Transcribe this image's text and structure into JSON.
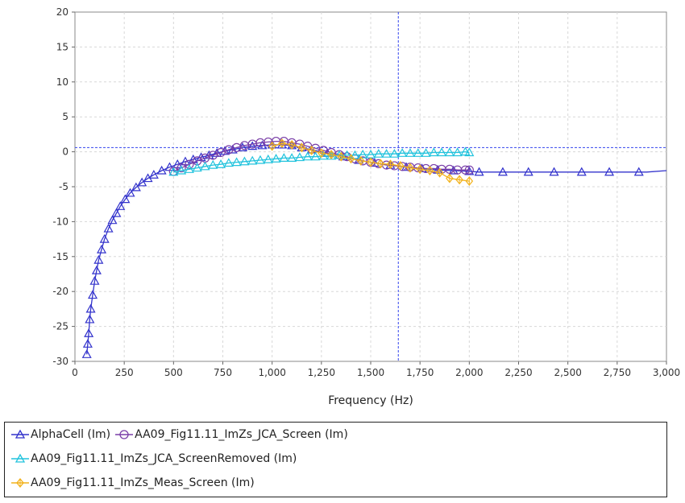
{
  "chart_data": {
    "type": "line",
    "title": "",
    "xlabel": "Frequency (Hz)",
    "ylabel": "",
    "xlim": [
      0,
      3000
    ],
    "ylim": [
      -30,
      20
    ],
    "grid": true,
    "legend_position": "bottom",
    "x_ticks": [
      0,
      250,
      500,
      750,
      1000,
      1250,
      1500,
      1750,
      2000,
      2250,
      2500,
      2750,
      3000
    ],
    "x_tick_labels": [
      "0",
      "250",
      "500",
      "750",
      "1,000",
      "1,250",
      "1,500",
      "1,750",
      "2,000",
      "2,250",
      "2,500",
      "2,750",
      "3,000"
    ],
    "y_ticks": [
      20,
      15,
      10,
      5,
      0,
      -5,
      -10,
      -15,
      -20,
      -25,
      -30
    ],
    "y_tick_labels": [
      "20",
      "15",
      "10",
      "5",
      "0",
      "-5",
      "-10",
      "-15",
      "-20",
      "-25",
      "-30"
    ],
    "crosshair": {
      "x": 1640,
      "y": 0.6
    },
    "series": [
      {
        "name": "AlphaCell (Im)",
        "color": "#3333cc",
        "marker": "triangle",
        "x": [
          60,
          65,
          70,
          75,
          80,
          90,
          100,
          110,
          120,
          135,
          150,
          170,
          190,
          210,
          230,
          255,
          280,
          310,
          340,
          370,
          400,
          440,
          480,
          520,
          560,
          600,
          640,
          680,
          720,
          760,
          800,
          850,
          900,
          950,
          1000,
          1050,
          1100,
          1150,
          1200,
          1280,
          1360,
          1440,
          1520,
          1600,
          1680,
          1760,
          1840,
          1920,
          2000,
          2050,
          2100,
          2200,
          2300,
          2400,
          2500,
          2600,
          2700,
          2800,
          2900,
          3000
        ],
        "y": [
          -29,
          -27.5,
          -26,
          -24,
          -22.5,
          -20.5,
          -18.5,
          -17,
          -15.5,
          -14,
          -12.5,
          -11,
          -9.8,
          -8.8,
          -7.8,
          -6.8,
          -5.9,
          -5.1,
          -4.4,
          -3.8,
          -3.3,
          -2.7,
          -2.2,
          -1.8,
          -1.4,
          -1.1,
          -0.8,
          -0.5,
          -0.2,
          0.1,
          0.3,
          0.6,
          0.8,
          0.9,
          1.0,
          1.0,
          0.9,
          0.6,
          0.3,
          -0.2,
          -0.7,
          -1.2,
          -1.6,
          -1.9,
          -2.2,
          -2.4,
          -2.6,
          -2.7,
          -2.8,
          -2.9,
          -2.9,
          -2.9,
          -2.9,
          -2.9,
          -2.9,
          -2.9,
          -2.9,
          -2.9,
          -2.9,
          -2.7
        ],
        "marker_x": [
          60,
          65,
          70,
          75,
          80,
          90,
          100,
          110,
          120,
          135,
          150,
          170,
          190,
          210,
          230,
          255,
          280,
          310,
          340,
          370,
          400,
          440,
          480,
          520,
          560,
          600,
          640,
          680,
          720,
          760,
          800,
          850,
          900,
          950,
          1000,
          1050,
          1100,
          1150,
          1200,
          1280,
          1360,
          1440,
          1520,
          1600,
          1680,
          1760,
          1840,
          1920,
          2000,
          2050,
          2170,
          2300,
          2430,
          2570,
          2710,
          2860
        ]
      },
      {
        "name": "AA09_Fig11.11_ImZs_JCA_Screen (Im)",
        "color": "#7a3fa8",
        "marker": "circle",
        "x": [
          500,
          540,
          580,
          620,
          660,
          700,
          740,
          780,
          820,
          860,
          900,
          940,
          980,
          1020,
          1060,
          1100,
          1140,
          1180,
          1220,
          1260,
          1300,
          1340,
          1380,
          1420,
          1460,
          1500,
          1540,
          1580,
          1620,
          1660,
          1700,
          1740,
          1780,
          1820,
          1860,
          1900,
          1940,
          1980,
          2000
        ],
        "y": [
          -2.8,
          -2.3,
          -1.8,
          -1.3,
          -0.9,
          -0.5,
          -0.1,
          0.3,
          0.6,
          0.9,
          1.1,
          1.3,
          1.4,
          1.5,
          1.5,
          1.3,
          1.1,
          0.8,
          0.5,
          0.2,
          -0.1,
          -0.4,
          -0.7,
          -1.0,
          -1.3,
          -1.5,
          -1.7,
          -1.9,
          -2.0,
          -2.1,
          -2.2,
          -2.3,
          -2.4,
          -2.4,
          -2.5,
          -2.5,
          -2.6,
          -2.6,
          -2.6
        ]
      },
      {
        "name": "AA09_Fig11.11_ImZs_JCA_ScreenRemoved (Im)",
        "color": "#22c3dd",
        "marker": "triangle",
        "x": [
          500,
          540,
          580,
          620,
          660,
          700,
          740,
          780,
          820,
          860,
          900,
          940,
          980,
          1020,
          1060,
          1100,
          1140,
          1180,
          1220,
          1260,
          1300,
          1340,
          1380,
          1420,
          1460,
          1500,
          1540,
          1580,
          1620,
          1660,
          1700,
          1740,
          1780,
          1820,
          1860,
          1900,
          1940,
          1980,
          2000
        ],
        "y": [
          -2.9,
          -2.7,
          -2.5,
          -2.3,
          -2.1,
          -1.9,
          -1.8,
          -1.6,
          -1.5,
          -1.4,
          -1.3,
          -1.2,
          -1.1,
          -1.0,
          -0.9,
          -0.9,
          -0.8,
          -0.7,
          -0.7,
          -0.6,
          -0.6,
          -0.5,
          -0.5,
          -0.5,
          -0.4,
          -0.4,
          -0.3,
          -0.3,
          -0.3,
          -0.2,
          -0.2,
          -0.2,
          -0.2,
          -0.1,
          -0.1,
          -0.1,
          -0.1,
          0.0,
          -0.1
        ]
      },
      {
        "name": "AA09_Fig11.11_ImZs_Meas_Screen (Im)",
        "color": "#f2b21c",
        "marker": "diamond-cross",
        "x": [
          1000,
          1050,
          1100,
          1150,
          1200,
          1250,
          1300,
          1350,
          1400,
          1450,
          1500,
          1550,
          1600,
          1650,
          1700,
          1750,
          1800,
          1850,
          1900,
          1950,
          2000
        ],
        "y": [
          0.8,
          1.2,
          1.0,
          0.6,
          0.2,
          -0.2,
          -0.4,
          -0.7,
          -1.0,
          -1.3,
          -1.5,
          -1.7,
          -1.8,
          -2.0,
          -2.3,
          -2.5,
          -2.7,
          -3.0,
          -3.8,
          -4.0,
          -4.2
        ]
      }
    ]
  }
}
